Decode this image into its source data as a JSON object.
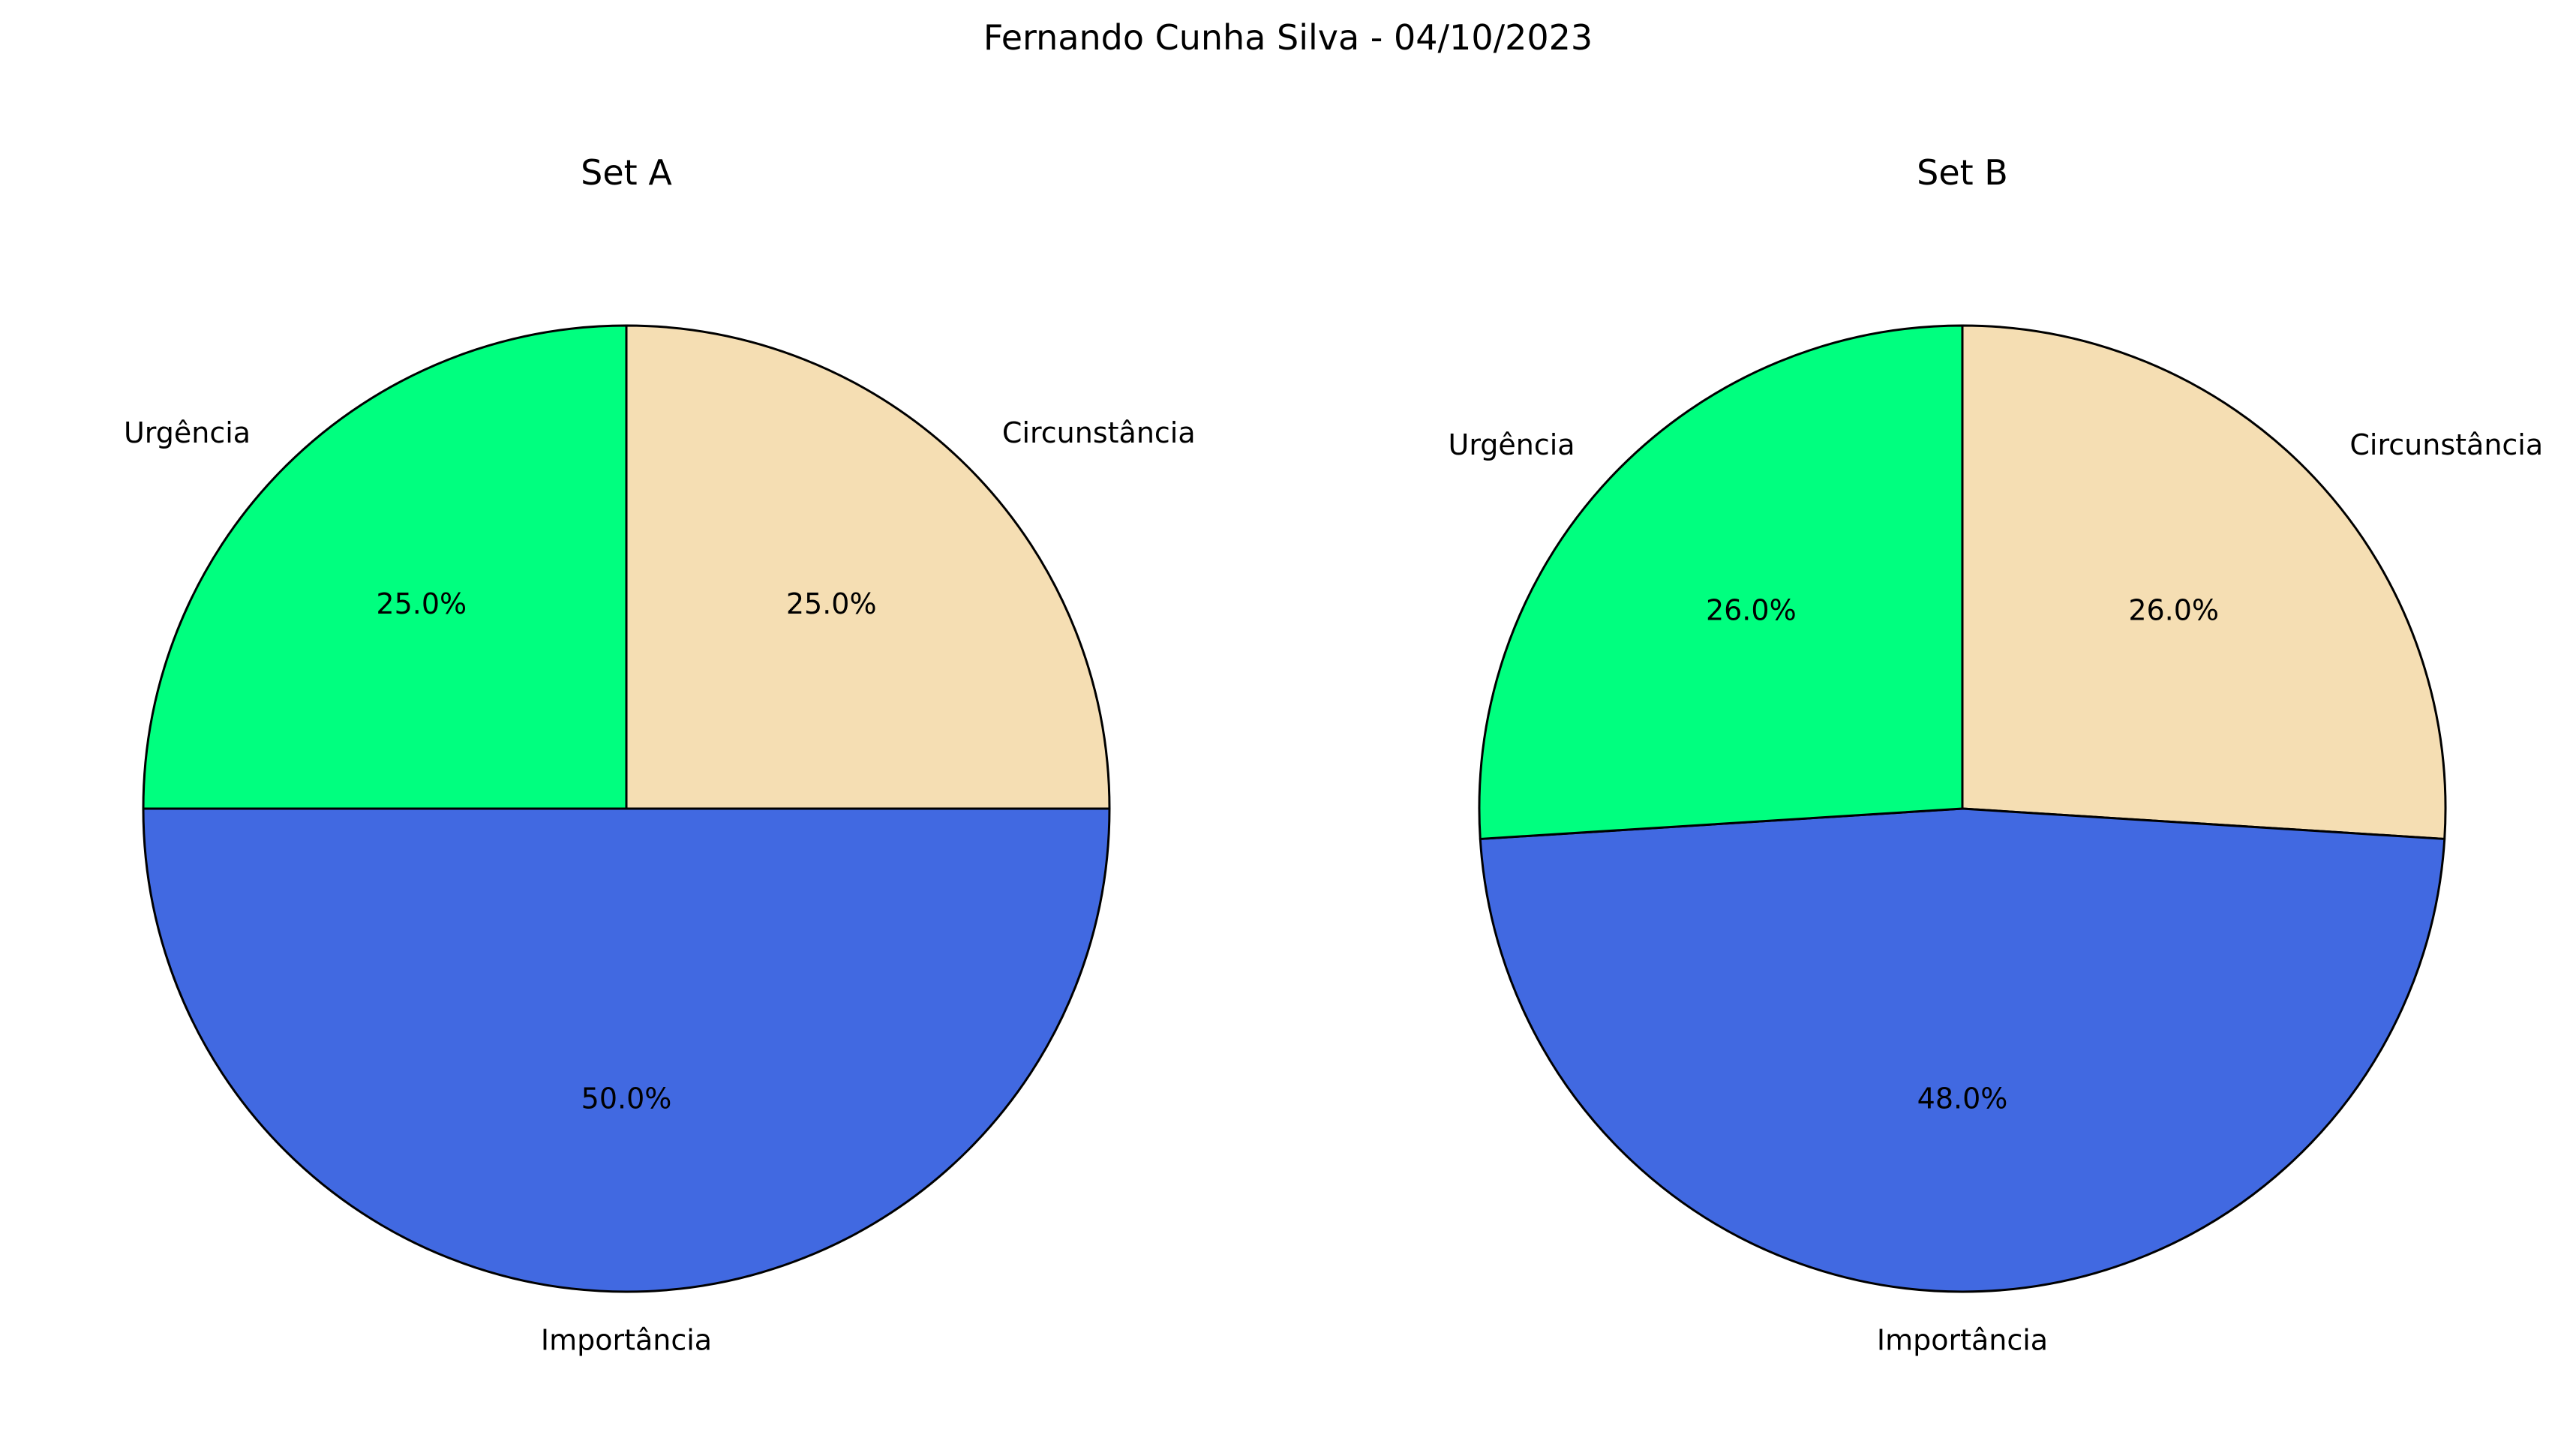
{
  "figure_title": "Fernando Cunha Silva - 04/10/2023",
  "chart_data": [
    {
      "type": "pie",
      "title": "Set A",
      "categories": [
        "Circunstância",
        "Importância",
        "Urgência"
      ],
      "values": [
        25.0,
        50.0,
        25.0
      ],
      "percent_labels": [
        "25.0%",
        "50.0%",
        "25.0%"
      ],
      "colors": [
        "#F5DEB3",
        "#4169E1",
        "#00FF7F"
      ],
      "start_angle_deg": 90,
      "direction": "clockwise"
    },
    {
      "type": "pie",
      "title": "Set B",
      "categories": [
        "Circunstância",
        "Importância",
        "Urgência"
      ],
      "values": [
        26.0,
        48.0,
        26.0
      ],
      "percent_labels": [
        "26.0%",
        "48.0%",
        "26.0%"
      ],
      "colors": [
        "#F5DEB3",
        "#4169E1",
        "#00FF7F"
      ],
      "start_angle_deg": 90,
      "direction": "clockwise"
    }
  ]
}
